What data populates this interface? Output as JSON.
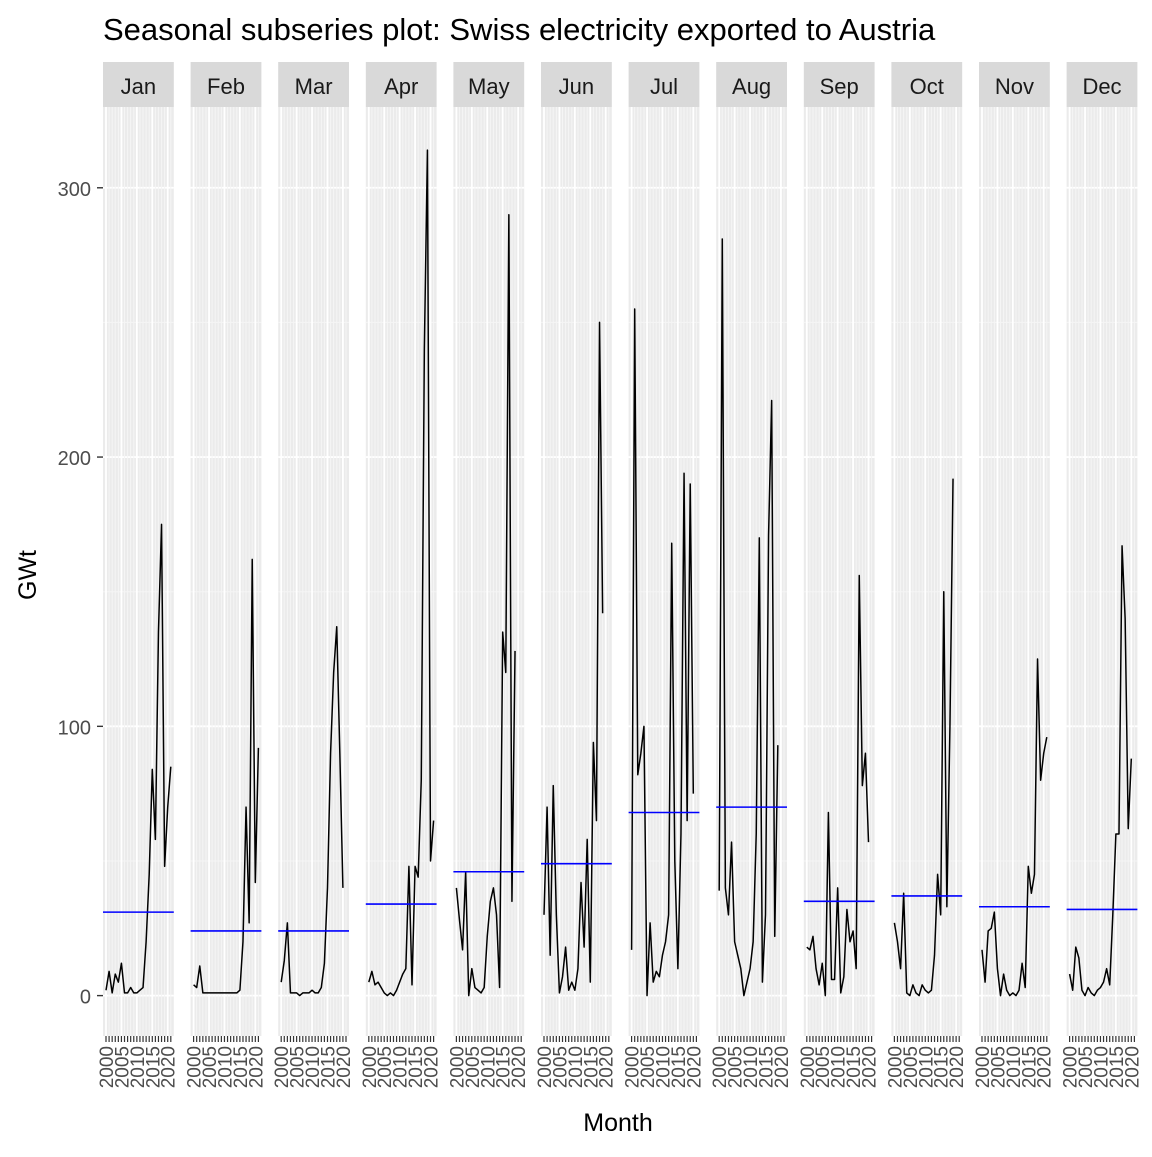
{
  "chart_data": {
    "type": "line",
    "title": "Seasonal subseries plot: Swiss electricity exported to Austria",
    "xlabel": "Month",
    "ylabel": "GWt",
    "ylim": [
      -15,
      330
    ],
    "yticks": [
      0,
      100,
      200,
      300
    ],
    "xticks": [
      "2000",
      "2005",
      "2010",
      "2015",
      "2020"
    ],
    "x_range": [
      2000,
      2021
    ],
    "grid": true,
    "panel_background": "#ebebeb",
    "strip_background": "#d9d9d9",
    "line_color": "#000000",
    "mean_color": "#0000ff",
    "years": [
      2000,
      2001,
      2002,
      2003,
      2004,
      2005,
      2006,
      2007,
      2008,
      2009,
      2010,
      2011,
      2012,
      2013,
      2014,
      2015,
      2016,
      2017,
      2018,
      2019,
      2020,
      2021
    ],
    "panels": [
      {
        "month": "Jan",
        "mean": 31,
        "values": [
          2,
          9,
          1,
          8,
          5,
          12,
          1,
          1,
          3,
          1,
          1,
          2,
          3,
          20,
          45,
          84,
          58,
          135,
          175,
          48,
          70,
          85
        ]
      },
      {
        "month": "Feb",
        "mean": 24,
        "values": [
          4,
          3,
          11,
          1,
          1,
          1,
          1,
          1,
          1,
          1,
          1,
          1,
          1,
          1,
          1,
          2,
          20,
          70,
          27,
          162,
          42,
          92
        ]
      },
      {
        "month": "Mar",
        "mean": 24,
        "values": [
          5,
          13,
          27,
          1,
          1,
          1,
          0,
          1,
          1,
          1,
          2,
          1,
          1,
          3,
          12,
          40,
          90,
          120,
          137,
          90,
          40
        ]
      },
      {
        "month": "Apr",
        "mean": 34,
        "values": [
          5,
          9,
          4,
          5,
          3,
          1,
          0,
          1,
          0,
          2,
          5,
          8,
          10,
          48,
          4,
          48,
          44,
          80,
          240,
          314,
          50,
          65
        ]
      },
      {
        "month": "May",
        "mean": 46,
        "values": [
          40,
          28,
          17,
          46,
          0,
          10,
          3,
          2,
          1,
          3,
          22,
          35,
          40,
          30,
          3,
          135,
          120,
          290,
          35,
          128
        ]
      },
      {
        "month": "Jun",
        "mean": 49,
        "values": [
          30,
          70,
          15,
          78,
          30,
          1,
          7,
          18,
          2,
          5,
          2,
          10,
          42,
          18,
          58,
          5,
          94,
          65,
          250,
          142
        ]
      },
      {
        "month": "Jul",
        "mean": 68,
        "values": [
          17,
          255,
          82,
          90,
          100,
          0,
          27,
          5,
          9,
          7,
          15,
          20,
          30,
          168,
          50,
          10,
          60,
          194,
          65,
          190,
          75
        ]
      },
      {
        "month": "Aug",
        "mean": 70,
        "values": [
          39,
          281,
          40,
          30,
          57,
          20,
          15,
          10,
          0,
          5,
          10,
          20,
          60,
          170,
          5,
          30,
          171,
          221,
          22,
          93
        ]
      },
      {
        "month": "Sep",
        "mean": 35,
        "values": [
          18,
          17,
          22,
          10,
          4,
          12,
          0,
          68,
          6,
          6,
          40,
          1,
          7,
          32,
          20,
          24,
          10,
          156,
          78,
          90,
          57
        ]
      },
      {
        "month": "Oct",
        "mean": 37,
        "values": [
          27,
          20,
          10,
          38,
          1,
          0,
          4,
          1,
          0,
          4,
          2,
          1,
          2,
          15,
          45,
          30,
          150,
          33,
          100,
          192
        ]
      },
      {
        "month": "Nov",
        "mean": 33,
        "values": [
          17,
          5,
          24,
          25,
          31,
          10,
          0,
          8,
          2,
          0,
          1,
          0,
          2,
          12,
          3,
          48,
          38,
          45,
          125,
          80,
          90,
          96
        ]
      },
      {
        "month": "Dec",
        "mean": 32,
        "values": [
          8,
          2,
          18,
          14,
          2,
          0,
          3,
          1,
          0,
          2,
          3,
          5,
          10,
          4,
          30,
          60,
          60,
          167,
          140,
          62,
          88
        ]
      }
    ]
  }
}
